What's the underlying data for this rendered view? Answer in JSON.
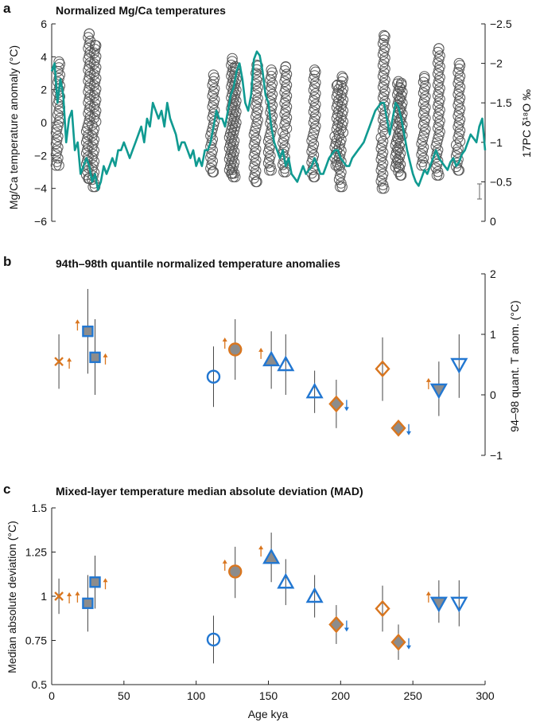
{
  "colors": {
    "orange": "#d9761f",
    "blue": "#2277d1",
    "teal": "#109a91",
    "gray": "#8c8c8c",
    "circle": "#555555"
  },
  "panels": {
    "a": {
      "label": "a",
      "title": "Normalized Mg/Ca temperatures"
    },
    "b": {
      "label": "b",
      "title": "94th–98th quantile normalized temperature anomalies"
    },
    "c": {
      "label": "c",
      "title": "Mixed-layer temperature median absolute deviation (MAD)"
    }
  },
  "chart_data": [
    {
      "panel": "a",
      "type": "scatter",
      "ylabel": "Mg/Ca temperature anomaly (°C)",
      "y2label": "17PC δ¹⁸O ‰",
      "xlim": [
        0,
        300
      ],
      "ylim": [
        -6,
        6
      ],
      "yticks": [
        6,
        4,
        2,
        0,
        -2,
        -4,
        -6
      ],
      "y2lim": [
        -2.5,
        0
      ],
      "y2_reversed": true,
      "y2ticks": [
        "−2.5",
        "−2",
        "−1.5",
        "−1",
        "−0.5",
        "0"
      ],
      "sample_clusters": [
        {
          "age": 5,
          "min": -2.6,
          "max": 3.7
        },
        {
          "age": 26,
          "min": -3.4,
          "max": 5.4
        },
        {
          "age": 30,
          "min": -3.9,
          "max": 4.7
        },
        {
          "age": 112,
          "min": -3.0,
          "max": 2.9
        },
        {
          "age": 125,
          "min": -3.1,
          "max": 3.9
        },
        {
          "age": 127,
          "min": -3.3,
          "max": 3.4
        },
        {
          "age": 142,
          "min": -3.6,
          "max": 3.5
        },
        {
          "age": 152,
          "min": -2.9,
          "max": 3.2
        },
        {
          "age": 162,
          "min": -3.0,
          "max": 3.4
        },
        {
          "age": 182,
          "min": -3.3,
          "max": 3.2
        },
        {
          "age": 198,
          "min": -2.6,
          "max": 2.3
        },
        {
          "age": 201,
          "min": -3.9,
          "max": 2.8
        },
        {
          "age": 230,
          "min": -4.0,
          "max": 5.3
        },
        {
          "age": 240,
          "min": -2.7,
          "max": 2.5
        },
        {
          "age": 242,
          "min": -3.2,
          "max": 2.4
        },
        {
          "age": 258,
          "min": -2.6,
          "max": 2.8
        },
        {
          "age": 268,
          "min": -3.2,
          "max": 4.5
        },
        {
          "age": 282,
          "min": -2.9,
          "max": 3.6
        }
      ],
      "series": [
        {
          "name": "17PC δ¹⁸O",
          "color": "#109a91",
          "x": [
            0,
            2,
            4,
            6,
            8,
            10,
            12,
            14,
            16,
            18,
            20,
            22,
            24,
            26,
            28,
            30,
            32,
            34,
            36,
            38,
            40,
            42,
            44,
            46,
            48,
            50,
            52,
            54,
            56,
            58,
            60,
            62,
            64,
            66,
            68,
            70,
            72,
            74,
            76,
            78,
            80,
            82,
            84,
            86,
            88,
            90,
            92,
            94,
            96,
            98,
            100,
            102,
            104,
            106,
            108,
            110,
            112,
            114,
            116,
            118,
            120,
            122,
            124,
            126,
            128,
            130,
            132,
            134,
            136,
            138,
            140,
            142,
            144,
            146,
            148,
            150,
            152,
            154,
            156,
            158,
            160,
            162,
            164,
            166,
            168,
            170,
            172,
            174,
            176,
            178,
            180,
            182,
            184,
            186,
            188,
            190,
            192,
            194,
            196,
            198,
            200,
            202,
            204,
            206,
            208,
            210,
            212,
            214,
            216,
            218,
            220,
            222,
            224,
            226,
            228,
            230,
            232,
            234,
            236,
            238,
            240,
            242,
            244,
            246,
            248,
            250,
            252,
            254,
            256,
            258,
            260,
            262,
            264,
            266,
            268,
            270,
            272,
            274,
            276,
            278,
            280,
            282,
            284,
            286,
            288,
            290,
            292,
            294,
            296,
            298,
            300
          ],
          "y": [
            -1.9,
            -2.0,
            -1.5,
            -1.8,
            -1.6,
            -1.0,
            -1.3,
            -1.4,
            -0.9,
            -1.0,
            -0.6,
            -0.7,
            -0.8,
            -0.7,
            -0.5,
            -0.6,
            -0.4,
            -0.5,
            -0.7,
            -0.6,
            -0.7,
            -0.8,
            -0.7,
            -0.9,
            -0.9,
            -1.0,
            -0.9,
            -0.8,
            -0.9,
            -1.0,
            -1.1,
            -1.2,
            -1.0,
            -1.3,
            -1.2,
            -1.5,
            -1.4,
            -1.3,
            -1.4,
            -1.2,
            -1.5,
            -1.3,
            -1.2,
            -1.1,
            -0.9,
            -1.0,
            -1.0,
            -0.9,
            -0.8,
            -0.9,
            -0.7,
            -0.8,
            -0.7,
            -0.9,
            -0.9,
            -1.0,
            -1.2,
            -1.4,
            -1.3,
            -1.3,
            -1.2,
            -1.4,
            -1.6,
            -1.7,
            -1.9,
            -2.0,
            -1.8,
            -1.5,
            -1.4,
            -1.6,
            -2.05,
            -2.15,
            -2.1,
            -1.9,
            -1.6,
            -1.5,
            -1.2,
            -1.0,
            -0.9,
            -0.8,
            -0.9,
            -0.7,
            -0.8,
            -0.6,
            -0.55,
            -0.5,
            -0.6,
            -0.7,
            -0.6,
            -0.65,
            -0.7,
            -0.8,
            -0.7,
            -0.6,
            -0.6,
            -0.7,
            -0.8,
            -0.85,
            -0.9,
            -0.9,
            -0.8,
            -0.75,
            -0.7,
            -0.7,
            -0.8,
            -0.85,
            -0.9,
            -0.95,
            -1.0,
            -1.1,
            -1.2,
            -1.3,
            -1.4,
            -1.45,
            -1.5,
            -1.5,
            -1.3,
            -1.1,
            -1.3,
            -1.5,
            -1.45,
            -1.3,
            -1.1,
            -0.9,
            -0.75,
            -0.6,
            -0.5,
            -0.45,
            -0.55,
            -0.65,
            -0.6,
            -0.7,
            -0.8,
            -0.9,
            -0.8,
            -0.75,
            -0.7,
            -0.65,
            -0.75,
            -0.8,
            -0.7,
            -0.75,
            -0.85,
            -0.9,
            -1.0,
            -1.1,
            -1.05,
            -1.0,
            -1.2,
            -1.3,
            -0.9
          ]
        }
      ],
      "legend": "none"
    },
    {
      "panel": "b",
      "type": "scatter",
      "ylabel": "94–98 quant. T anom. (°C)",
      "ylim": [
        -1,
        2
      ],
      "yticks": [
        2,
        1,
        0,
        -1
      ],
      "xlim": [
        0,
        300
      ],
      "points": [
        {
          "x": 5,
          "y": 0.55,
          "lo": 0.1,
          "hi": 1.0,
          "marker": "x",
          "color": "orange",
          "fill": "none",
          "arrow": "up",
          "arrow_color": "orange"
        },
        {
          "x": 25,
          "y": 1.05,
          "lo": 0.35,
          "hi": 1.75,
          "marker": "square",
          "color": "blue",
          "fill": "gray",
          "arrow": "up",
          "arrow_color": "orange",
          "arrow_side": "left"
        },
        {
          "x": 30,
          "y": 0.62,
          "lo": 0.0,
          "hi": 1.25,
          "marker": "square",
          "color": "blue",
          "fill": "gray",
          "arrow": "up",
          "arrow_color": "orange"
        },
        {
          "x": 112,
          "y": 0.3,
          "lo": -0.2,
          "hi": 0.8,
          "marker": "circle",
          "color": "blue",
          "fill": "none"
        },
        {
          "x": 127,
          "y": 0.75,
          "lo": 0.25,
          "hi": 1.25,
          "marker": "circle",
          "color": "orange",
          "fill": "gray",
          "arrow": "up",
          "arrow_color": "orange",
          "arrow_side": "left"
        },
        {
          "x": 152,
          "y": 0.58,
          "lo": 0.1,
          "hi": 1.05,
          "marker": "triangle-up",
          "color": "blue",
          "fill": "gray",
          "arrow": "up",
          "arrow_color": "orange",
          "arrow_side": "left"
        },
        {
          "x": 162,
          "y": 0.5,
          "lo": 0.0,
          "hi": 1.0,
          "marker": "triangle-up",
          "color": "blue",
          "fill": "none"
        },
        {
          "x": 182,
          "y": 0.05,
          "lo": -0.3,
          "hi": 0.4,
          "marker": "triangle-up",
          "color": "blue",
          "fill": "none"
        },
        {
          "x": 197,
          "y": -0.15,
          "lo": -0.55,
          "hi": 0.25,
          "marker": "diamond",
          "color": "orange",
          "fill": "gray",
          "arrow": "down",
          "arrow_color": "blue"
        },
        {
          "x": 229,
          "y": 0.43,
          "lo": -0.1,
          "hi": 0.95,
          "marker": "diamond",
          "color": "orange",
          "fill": "none"
        },
        {
          "x": 240,
          "y": -0.55,
          "lo": -0.65,
          "hi": -0.45,
          "marker": "diamond",
          "color": "orange",
          "fill": "gray",
          "arrow": "down",
          "arrow_color": "blue"
        },
        {
          "x": 268,
          "y": 0.08,
          "lo": -0.35,
          "hi": 0.55,
          "marker": "triangle-down",
          "color": "blue",
          "fill": "gray",
          "arrow": "up",
          "arrow_color": "orange",
          "arrow_side": "left"
        },
        {
          "x": 282,
          "y": 0.5,
          "lo": -0.05,
          "hi": 1.0,
          "marker": "triangle-down",
          "color": "blue",
          "fill": "none"
        }
      ]
    },
    {
      "panel": "c",
      "type": "scatter",
      "xlabel": "Age kya",
      "ylabel": "Median absolute deviation (°C)",
      "xlim": [
        0,
        300
      ],
      "ylim": [
        0.5,
        1.5
      ],
      "xticks": [
        0,
        50,
        100,
        150,
        200,
        250,
        300
      ],
      "yticks": [
        "1.5",
        "1.25",
        "1",
        "0.75",
        "0.5"
      ],
      "points": [
        {
          "x": 5,
          "y": 1.0,
          "lo": 0.9,
          "hi": 1.1,
          "marker": "x",
          "color": "orange",
          "fill": "none",
          "arrow": "up",
          "arrow_color": "orange"
        },
        {
          "x": 25,
          "y": 0.96,
          "lo": 0.8,
          "hi": 1.12,
          "marker": "square",
          "color": "blue",
          "fill": "gray",
          "arrow": "up",
          "arrow_color": "orange",
          "arrow_side": "left"
        },
        {
          "x": 30,
          "y": 1.08,
          "lo": 0.93,
          "hi": 1.23,
          "marker": "square",
          "color": "blue",
          "fill": "gray",
          "arrow": "up",
          "arrow_color": "orange"
        },
        {
          "x": 112,
          "y": 0.755,
          "lo": 0.62,
          "hi": 0.89,
          "marker": "circle",
          "color": "blue",
          "fill": "none"
        },
        {
          "x": 127,
          "y": 1.14,
          "lo": 0.99,
          "hi": 1.28,
          "marker": "circle",
          "color": "orange",
          "fill": "gray",
          "arrow": "up",
          "arrow_color": "orange",
          "arrow_side": "left"
        },
        {
          "x": 152,
          "y": 1.22,
          "lo": 1.08,
          "hi": 1.36,
          "marker": "triangle-up",
          "color": "blue",
          "fill": "gray",
          "arrow": "up",
          "arrow_color": "orange",
          "arrow_side": "left"
        },
        {
          "x": 162,
          "y": 1.08,
          "lo": 0.95,
          "hi": 1.21,
          "marker": "triangle-up",
          "color": "blue",
          "fill": "none"
        },
        {
          "x": 182,
          "y": 1.0,
          "lo": 0.88,
          "hi": 1.12,
          "marker": "triangle-up",
          "color": "blue",
          "fill": "none"
        },
        {
          "x": 197,
          "y": 0.84,
          "lo": 0.73,
          "hi": 0.95,
          "marker": "diamond",
          "color": "orange",
          "fill": "gray",
          "arrow": "down",
          "arrow_color": "blue"
        },
        {
          "x": 229,
          "y": 0.93,
          "lo": 0.8,
          "hi": 1.06,
          "marker": "diamond",
          "color": "orange",
          "fill": "none"
        },
        {
          "x": 240,
          "y": 0.74,
          "lo": 0.64,
          "hi": 0.84,
          "marker": "diamond",
          "color": "orange",
          "fill": "gray",
          "arrow": "down",
          "arrow_color": "blue"
        },
        {
          "x": 268,
          "y": 0.96,
          "lo": 0.85,
          "hi": 1.09,
          "marker": "triangle-down",
          "color": "blue",
          "fill": "gray",
          "arrow": "up",
          "arrow_color": "orange",
          "arrow_side": "left"
        },
        {
          "x": 282,
          "y": 0.96,
          "lo": 0.83,
          "hi": 1.09,
          "marker": "triangle-down",
          "color": "blue",
          "fill": "none"
        }
      ]
    }
  ]
}
